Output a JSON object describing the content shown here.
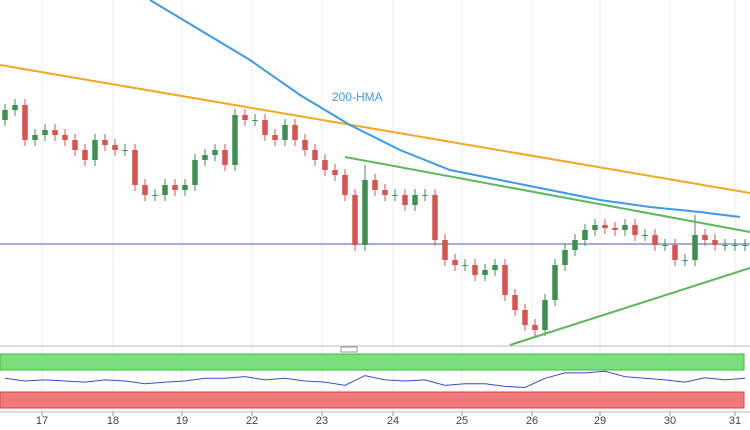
{
  "chart_data": {
    "type": "candlestick",
    "ylim": [
      0,
      345
    ],
    "xlim": [
      -0.5,
      74.5
    ],
    "xticks": [
      {
        "value": 3.7,
        "label": "17"
      },
      {
        "value": 10.8,
        "label": "18"
      },
      {
        "value": 17.7,
        "label": "19"
      },
      {
        "value": 24.7,
        "label": "22"
      },
      {
        "value": 31.7,
        "label": "23"
      },
      {
        "value": 38.8,
        "label": "24"
      },
      {
        "value": 45.7,
        "label": "25"
      },
      {
        "value": 52.7,
        "label": "26"
      },
      {
        "value": 59.5,
        "label": "29"
      },
      {
        "value": 66.5,
        "label": "30"
      },
      {
        "value": 73,
        "label": "31"
      }
    ],
    "up_color": "#3f8f52",
    "down_color": "#d9534f",
    "open": [
      225,
      235,
      240,
      205,
      210,
      215,
      210,
      205,
      195,
      185,
      205,
      200,
      195,
      195,
      160,
      150,
      150,
      160,
      155,
      160,
      185,
      190,
      195,
      180,
      230,
      225,
      225,
      210,
      205,
      220,
      205,
      195,
      185,
      175,
      170,
      150,
      100,
      165,
      155,
      150,
      150,
      140,
      150,
      150,
      105,
      85,
      80,
      80,
      70,
      75,
      80,
      50,
      35,
      20,
      15,
      45,
      80,
      95,
      105,
      115,
      120,
      117,
      115,
      120,
      110,
      110,
      100,
      100,
      85,
      85,
      110,
      105,
      100,
      100,
      100
    ],
    "high": [
      241,
      246,
      246,
      216,
      221,
      221,
      216,
      211,
      201,
      211,
      211,
      206,
      201,
      201,
      166,
      156,
      166,
      166,
      166,
      191,
      196,
      201,
      201,
      236,
      236,
      231,
      231,
      216,
      226,
      226,
      211,
      201,
      191,
      181,
      176,
      156,
      180,
      171,
      161,
      156,
      156,
      156,
      156,
      156,
      111,
      91,
      86,
      86,
      81,
      86,
      86,
      56,
      41,
      26,
      51,
      86,
      101,
      111,
      121,
      126,
      126,
      123,
      126,
      126,
      116,
      116,
      106,
      106,
      91,
      130,
      116,
      111,
      106,
      106,
      106
    ],
    "low": [
      219,
      229,
      199,
      199,
      204,
      204,
      199,
      189,
      179,
      179,
      194,
      189,
      189,
      154,
      144,
      144,
      144,
      149,
      149,
      154,
      179,
      184,
      174,
      174,
      219,
      219,
      204,
      199,
      199,
      199,
      189,
      179,
      169,
      164,
      144,
      94,
      94,
      149,
      144,
      144,
      134,
      134,
      144,
      99,
      79,
      74,
      74,
      64,
      64,
      69,
      44,
      29,
      14,
      9,
      9,
      39,
      74,
      89,
      99,
      109,
      111,
      109,
      109,
      104,
      104,
      94,
      94,
      79,
      79,
      79,
      99,
      94,
      94,
      94,
      94
    ],
    "close": [
      235,
      240,
      205,
      210,
      215,
      210,
      205,
      195,
      185,
      205,
      200,
      195,
      195,
      160,
      150,
      150,
      160,
      155,
      160,
      185,
      190,
      195,
      180,
      230,
      225,
      225,
      210,
      205,
      220,
      205,
      195,
      185,
      175,
      170,
      150,
      100,
      165,
      155,
      150,
      150,
      140,
      150,
      150,
      105,
      85,
      80,
      80,
      70,
      75,
      80,
      50,
      35,
      20,
      15,
      45,
      80,
      95,
      105,
      115,
      120,
      117,
      115,
      120,
      110,
      110,
      100,
      100,
      85,
      85,
      110,
      105,
      100,
      100,
      100,
      100
    ],
    "hma": {
      "label": "200-HMA",
      "color": "#3d9be9",
      "x": [
        14.5,
        19.5,
        24.5,
        29.5,
        34.5,
        39.5,
        44.5,
        49.5,
        54.5,
        59.5,
        64.5,
        69.5,
        73.5
      ],
      "values": [
        345,
        315,
        285,
        250,
        220,
        195,
        175,
        165,
        155,
        145,
        138,
        133,
        128
      ]
    },
    "trendlines": [
      {
        "color": "#f5a623",
        "x": [
          -0.5,
          74.5
        ],
        "values": [
          280,
          152
        ]
      },
      {
        "color": "#5cb85c",
        "x": [
          34,
          74.5
        ],
        "values": [
          188,
          113
        ]
      },
      {
        "color": "#5cb85c",
        "x": [
          50.5,
          74.5
        ],
        "values": [
          0,
          77
        ]
      }
    ],
    "hline": {
      "value": 101,
      "color": "#4a5fa8"
    },
    "rsi": {
      "color": "#3b4fc4",
      "ylim": [
        0,
        100
      ],
      "x": [
        0,
        2,
        4,
        6,
        8,
        10,
        12,
        14,
        16,
        18,
        20,
        22,
        24,
        26,
        28,
        30,
        32,
        34,
        36,
        38,
        40,
        42,
        44,
        46,
        48,
        50,
        52,
        54,
        56,
        58,
        60,
        62,
        64,
        66,
        68,
        70,
        72,
        74
      ],
      "values": [
        55,
        50,
        52,
        50,
        48,
        52,
        50,
        45,
        48,
        50,
        55,
        55,
        58,
        52,
        55,
        50,
        48,
        42,
        60,
        52,
        50,
        52,
        42,
        45,
        45,
        40,
        38,
        55,
        65,
        65,
        68,
        58,
        55,
        52,
        48,
        56,
        52,
        55
      ]
    }
  }
}
